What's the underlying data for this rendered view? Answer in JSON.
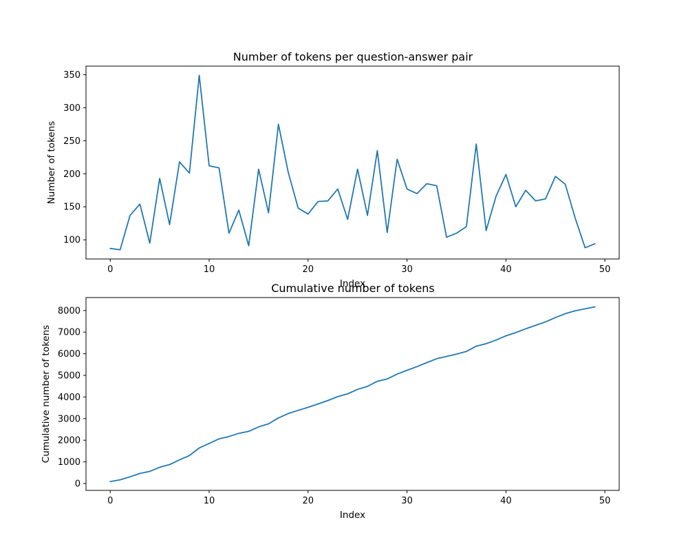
{
  "chart_data": [
    {
      "type": "line",
      "title": "Number of tokens per question-answer pair",
      "xlabel": "Index",
      "ylabel": "Number of tokens",
      "xlim": [
        -2.45,
        51.45
      ],
      "ylim": [
        71,
        363
      ],
      "xticks": [
        0,
        10,
        20,
        30,
        40,
        50
      ],
      "yticks": [
        100,
        150,
        200,
        250,
        300,
        350
      ],
      "color": "#1f77b4",
      "x": [
        0,
        1,
        2,
        3,
        4,
        5,
        6,
        7,
        8,
        9,
        10,
        11,
        12,
        13,
        14,
        15,
        16,
        17,
        18,
        19,
        20,
        21,
        22,
        23,
        24,
        25,
        26,
        27,
        28,
        29,
        30,
        31,
        32,
        33,
        34,
        35,
        36,
        37,
        38,
        39,
        40,
        41,
        42,
        43,
        44,
        45,
        46,
        47,
        48,
        49
      ],
      "values": [
        87,
        85,
        137,
        154,
        95,
        193,
        123,
        218,
        201,
        349,
        212,
        209,
        110,
        145,
        91,
        207,
        141,
        275,
        202,
        148,
        139,
        158,
        159,
        177,
        131,
        207,
        137,
        235,
        111,
        222,
        177,
        170,
        185,
        182,
        104,
        110,
        120,
        245,
        114,
        166,
        199,
        150,
        175,
        159,
        162,
        196,
        184,
        133,
        88,
        94
      ]
    },
    {
      "type": "line",
      "title": "Cumulative number of tokens",
      "xlabel": "Index",
      "ylabel": "Cumulative number of tokens",
      "xlim": [
        -2.45,
        51.45
      ],
      "ylim": [
        -320,
        8600
      ],
      "xticks": [
        0,
        10,
        20,
        30,
        40,
        50
      ],
      "yticks": [
        0,
        1000,
        2000,
        3000,
        4000,
        5000,
        6000,
        7000,
        8000
      ],
      "color": "#1f77b4",
      "x": [
        0,
        1,
        2,
        3,
        4,
        5,
        6,
        7,
        8,
        9,
        10,
        11,
        12,
        13,
        14,
        15,
        16,
        17,
        18,
        19,
        20,
        21,
        22,
        23,
        24,
        25,
        26,
        27,
        28,
        29,
        30,
        31,
        32,
        33,
        34,
        35,
        36,
        37,
        38,
        39,
        40,
        41,
        42,
        43,
        44,
        45,
        46,
        47,
        48,
        49
      ],
      "values": [
        87,
        172,
        309,
        463,
        558,
        751,
        874,
        1092,
        1293,
        1642,
        1854,
        2063,
        2173,
        2318,
        2409,
        2616,
        2757,
        3032,
        3234,
        3382,
        3521,
        3679,
        3838,
        4015,
        4146,
        4353,
        4490,
        4725,
        4836,
        5058,
        5235,
        5405,
        5590,
        5772,
        5876,
        5986,
        6106,
        6351,
        6465,
        6631,
        6830,
        6980,
        7155,
        7314,
        7476,
        7672,
        7856,
        7989,
        8077,
        8171
      ]
    }
  ]
}
